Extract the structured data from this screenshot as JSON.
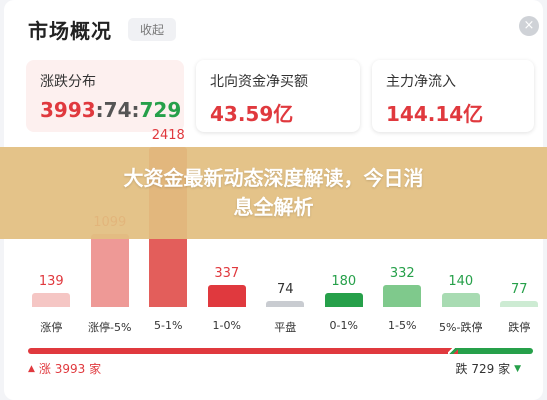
{
  "header": {
    "title": "市场概况",
    "collapse_label": "收起",
    "close_glyph": "×"
  },
  "cards": [
    {
      "label": "涨跌分布",
      "value_up": "3993",
      "sep1": ":",
      "value_flat": "74",
      "sep2": ":",
      "value_down": "729"
    },
    {
      "label": "北向资金净买额",
      "value": "43.59亿"
    },
    {
      "label": "主力净流入",
      "value": "144.14亿"
    }
  ],
  "banner": {
    "line1": "大资金最新动态深度解读，今日消",
    "line2": "息全解析"
  },
  "chart_data": {
    "type": "bar",
    "categories": [
      "涨停",
      "涨停-5%",
      "5-1%",
      "1-0%",
      "平盘",
      "0-1%",
      "1-5%",
      "5%-跌停",
      "跌停"
    ],
    "values": [
      139,
      1099,
      2418,
      337,
      74,
      180,
      332,
      140,
      77
    ],
    "value_labels": [
      "139",
      "1099",
      "2418",
      "337",
      "74",
      "180",
      "332",
      "140",
      "77"
    ],
    "colors": [
      "#f5c6c4",
      "#ee9996",
      "#e35e5b",
      "#e0393e",
      "#c9ccd1",
      "#26a04a",
      "#7fc98c",
      "#a8dbb2",
      "#cdebd3"
    ],
    "label_colors": [
      "#e0393e",
      "#e0393e",
      "#e0393e",
      "#e0393e",
      "#333333",
      "#26a04a",
      "#26a04a",
      "#26a04a",
      "#26a04a"
    ],
    "ylim": [
      0,
      2418
    ]
  },
  "breadth": {
    "up_label": "涨 3993 家",
    "down_label": "跌 729 家",
    "up_count": 3993,
    "flat_count": 74,
    "down_count": 729,
    "up_color": "#e0393e",
    "down_color": "#26a04a"
  }
}
